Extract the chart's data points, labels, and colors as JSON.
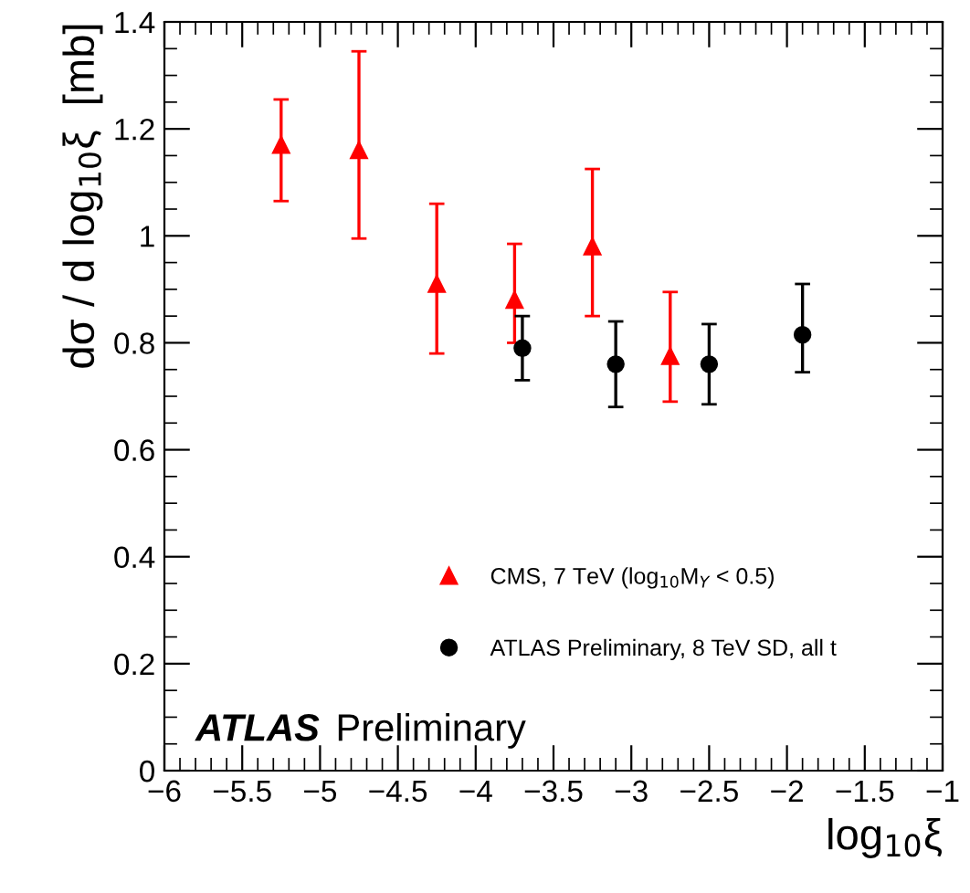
{
  "chart_data": {
    "type": "scatter",
    "xlabel": "log$_{10}$ξ",
    "ylabel": "dσ / d log$_{10}$ξ  [mb]",
    "xlim": [
      -6,
      -1
    ],
    "ylim": [
      0,
      1.4
    ],
    "xticks": [
      {
        "value": -6,
        "label": "−6"
      },
      {
        "value": -5.5,
        "label": "−5.5"
      },
      {
        "value": -5,
        "label": "−5"
      },
      {
        "value": -4.5,
        "label": "−4.5"
      },
      {
        "value": -4,
        "label": "−4"
      },
      {
        "value": -3.5,
        "label": "−3.5"
      },
      {
        "value": -3,
        "label": "−3"
      },
      {
        "value": -2.5,
        "label": "−2.5"
      },
      {
        "value": -2,
        "label": "−2"
      },
      {
        "value": -1.5,
        "label": "−1.5"
      },
      {
        "value": -1,
        "label": "−1"
      }
    ],
    "yticks": [
      0,
      0.2,
      0.4,
      0.6,
      0.8,
      1,
      1.2,
      1.4
    ],
    "grid": false,
    "legend": "bottom",
    "series": [
      {
        "name": "CMS, 7 TeV (log$_{10}$M$_{Y}$ < 0.5)",
        "color": "#ff0000",
        "marker": "triangle",
        "x": [
          -5.25,
          -4.75,
          -4.25,
          -3.75,
          -3.25,
          -2.75
        ],
        "values": [
          1.17,
          1.16,
          0.91,
          0.88,
          0.98,
          0.775
        ],
        "errors": [
          [
            1.065,
            1.255
          ],
          [
            0.995,
            1.345
          ],
          [
            0.78,
            1.06
          ],
          [
            0.8,
            0.985
          ],
          [
            0.85,
            1.125
          ],
          [
            0.69,
            0.895
          ]
        ]
      },
      {
        "name": "ATLAS Preliminary, 8 TeV SD, all t",
        "color": "#000000",
        "marker": "circle",
        "x": [
          -3.7,
          -3.1,
          -2.5,
          -1.9
        ],
        "values": [
          0.79,
          0.76,
          0.76,
          0.815
        ],
        "errors": [
          [
            0.73,
            0.85
          ],
          [
            0.68,
            0.84
          ],
          [
            0.685,
            0.835
          ],
          [
            0.745,
            0.91
          ]
        ]
      }
    ],
    "annotations": [
      "ATLAS",
      "Preliminary"
    ]
  }
}
